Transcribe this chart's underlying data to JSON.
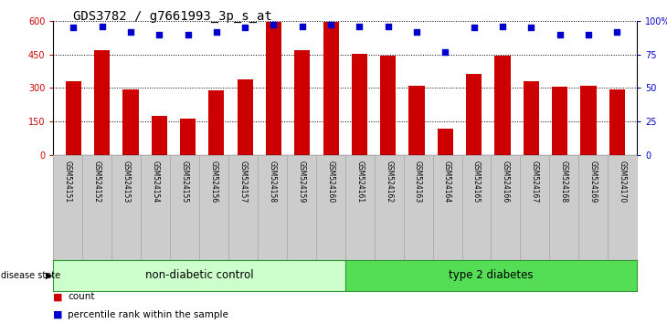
{
  "title": "GDS3782 / g7661993_3p_s_at",
  "samples": [
    "GSM524151",
    "GSM524152",
    "GSM524153",
    "GSM524154",
    "GSM524155",
    "GSM524156",
    "GSM524157",
    "GSM524158",
    "GSM524159",
    "GSM524160",
    "GSM524161",
    "GSM524162",
    "GSM524163",
    "GSM524164",
    "GSM524165",
    "GSM524166",
    "GSM524167",
    "GSM524168",
    "GSM524169",
    "GSM524170"
  ],
  "counts": [
    330,
    470,
    295,
    175,
    165,
    290,
    340,
    595,
    470,
    595,
    455,
    445,
    310,
    120,
    365,
    445,
    330,
    305,
    310,
    295
  ],
  "percentiles": [
    95,
    96,
    92,
    90,
    90,
    92,
    95,
    97,
    96,
    97,
    96,
    96,
    92,
    77,
    95,
    96,
    95,
    90,
    90,
    92
  ],
  "group1_label": "non-diabetic control",
  "group2_label": "type 2 diabetes",
  "group1_count": 10,
  "group2_count": 10,
  "bar_color": "#cc0000",
  "dot_color": "#0000cc",
  "bg_color": "#ffffff",
  "ylim_left": [
    0,
    600
  ],
  "ylim_right": [
    0,
    100
  ],
  "yticks_left": [
    0,
    150,
    300,
    450,
    600
  ],
  "yticks_right": [
    0,
    25,
    50,
    75,
    100
  ],
  "group1_color": "#ccffcc",
  "group2_color": "#55dd55",
  "title_fontsize": 10,
  "tick_label_fontsize": 7,
  "legend_fontsize": 7.5,
  "group_label_fontsize": 8.5,
  "sample_fontsize": 5.5
}
